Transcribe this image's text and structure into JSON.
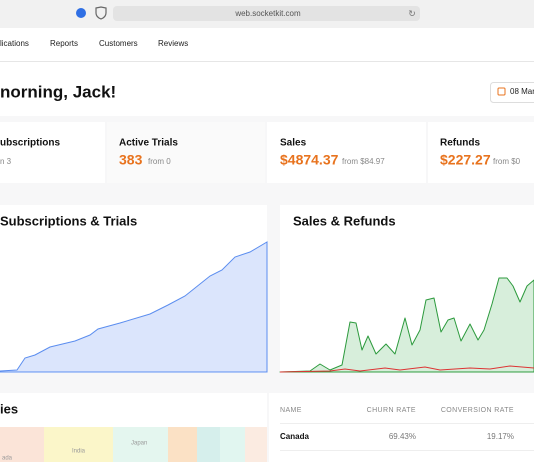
{
  "browser": {
    "url": "web.socketkit.com"
  },
  "nav": [
    "lications",
    "Reports",
    "Customers",
    "Reviews"
  ],
  "header": {
    "greeting": "norning, Jack!",
    "date": "08 Mar"
  },
  "stats": [
    {
      "title": "ubscriptions",
      "value": "",
      "from": "n 3"
    },
    {
      "title": "Active Trials",
      "value": "383",
      "from": "from 0"
    },
    {
      "title": "Sales",
      "value": "$4874.37",
      "from": "from $84.97"
    },
    {
      "title": "Refunds",
      "value": "$227.27",
      "from": "from $0"
    }
  ],
  "charts": [
    "Subscriptions & Trials",
    "Sales & Refunds"
  ],
  "countries": {
    "title": "ies",
    "labels": [
      "ada",
      "India",
      "Japan"
    ]
  },
  "table": {
    "headers": [
      "NAME",
      "CHURN RATE",
      "CONVERSION RATE"
    ],
    "rows": [
      [
        "Canada",
        "69.43%",
        "19.17%"
      ]
    ]
  }
}
